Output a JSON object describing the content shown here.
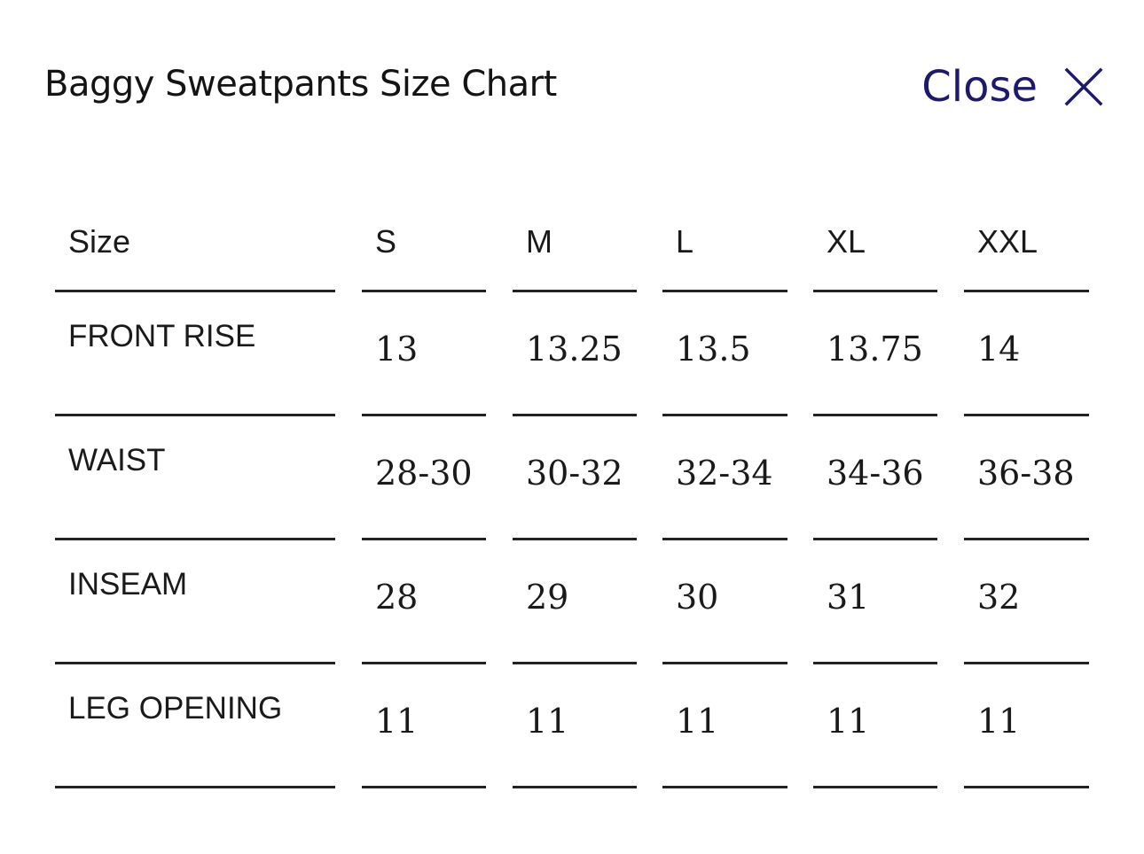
{
  "dialog": {
    "title": "Baggy Sweatpants Size Chart",
    "close_label": "Close",
    "close_icon": "close-icon",
    "accent_color": "#1d1a6b"
  },
  "table": {
    "header": {
      "label": "Size",
      "sizes": [
        "S",
        "M",
        "L",
        "XL",
        "XXL"
      ]
    },
    "rows": [
      {
        "label": "FRONT RISE",
        "values": [
          "13",
          "13.25",
          "13.5",
          "13.75",
          "14"
        ]
      },
      {
        "label": "WAIST",
        "values": [
          "28-30",
          "30-32",
          "32-34",
          "34-36",
          "36-38"
        ]
      },
      {
        "label": "INSEAM",
        "values": [
          "28",
          "29",
          "30",
          "31",
          "32"
        ]
      },
      {
        "label": "LEG OPENING",
        "values": [
          "11",
          "11",
          "11",
          "11",
          "11"
        ]
      }
    ]
  }
}
